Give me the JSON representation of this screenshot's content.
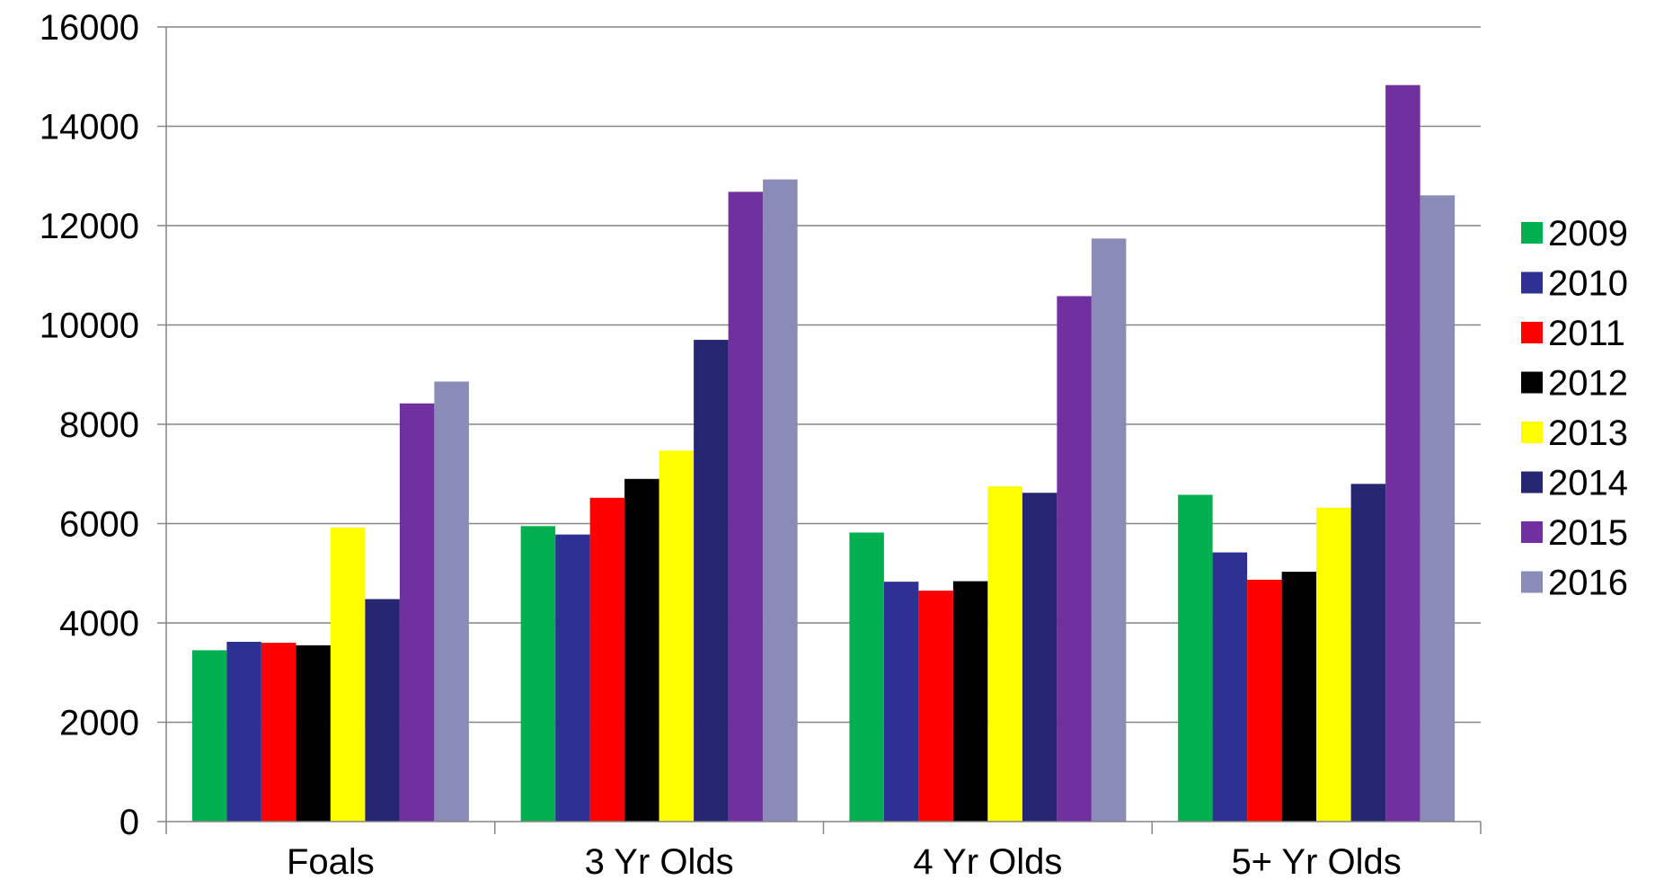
{
  "chart_data": {
    "type": "bar",
    "title": "",
    "xlabel": "",
    "ylabel": "",
    "ylim": [
      0,
      16000
    ],
    "yticks": [
      0,
      2000,
      4000,
      6000,
      8000,
      10000,
      12000,
      14000,
      16000
    ],
    "grid": true,
    "legend_position": "right",
    "categories": [
      "Foals",
      "3 Yr Olds",
      "4 Yr Olds",
      "5+ Yr Olds"
    ],
    "series": [
      {
        "name": "2009",
        "color": "#00b050",
        "values": [
          3450,
          5950,
          5820,
          6580
        ]
      },
      {
        "name": "2010",
        "color": "#2e3192",
        "values": [
          3620,
          5780,
          4830,
          5420
        ]
      },
      {
        "name": "2011",
        "color": "#ff0000",
        "values": [
          3600,
          6520,
          4650,
          4870
        ]
      },
      {
        "name": "2012",
        "color": "#000000",
        "values": [
          3550,
          6900,
          4840,
          5030
        ]
      },
      {
        "name": "2013",
        "color": "#ffff00",
        "values": [
          5920,
          7470,
          6750,
          6320
        ]
      },
      {
        "name": "2014",
        "color": "#262673",
        "values": [
          4480,
          9700,
          6620,
          6800
        ]
      },
      {
        "name": "2015",
        "color": "#7030a0",
        "values": [
          8420,
          12680,
          10580,
          14830
        ]
      },
      {
        "name": "2016",
        "color": "#8b8bb8",
        "values": [
          8860,
          12930,
          11740,
          12610
        ]
      }
    ]
  }
}
